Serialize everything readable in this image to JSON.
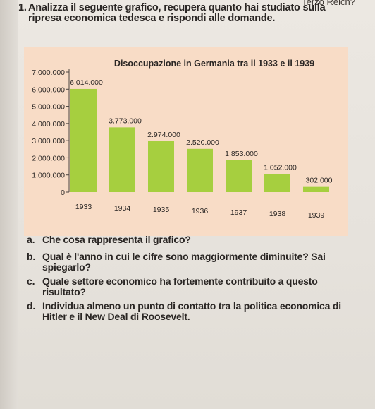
{
  "header_fragment": "Terzo Reich?",
  "exercise": {
    "number": "1.",
    "instruction": "Analizza il seguente grafico, recupera quanto hai studiato sulla ripresa economica tedesca e rispondi alle domande."
  },
  "chart_data": {
    "type": "bar",
    "title": "Disoccupazione in Germania tra il 1933 e il 1939",
    "categories": [
      "1933",
      "1934",
      "1935",
      "1936",
      "1937",
      "1938",
      "1939"
    ],
    "values": [
      6014000,
      3773000,
      2974000,
      2520000,
      1853000,
      1052000,
      302000
    ],
    "data_labels": [
      "6.014.000",
      "3.773.000",
      "2.974.000",
      "2.520.000",
      "1.853.000",
      "1.052.000",
      "302.000"
    ],
    "y_ticks": [
      0,
      1000000,
      2000000,
      3000000,
      4000000,
      5000000,
      6000000,
      7000000
    ],
    "y_tick_labels": [
      "0",
      "1.000.000",
      "2.000.000",
      "3.000.000",
      "4.000.000",
      "5.000.000",
      "6.000.000",
      "7.000.000"
    ],
    "ylim": [
      0,
      7000000
    ],
    "grid": false,
    "colors": {
      "bar": "#a6cf3f",
      "background": "#f8dcc6",
      "axis": "#4a4440"
    }
  },
  "questions": [
    {
      "label": "a.",
      "text": "Che cosa rappresenta il grafico?"
    },
    {
      "label": "b.",
      "text": "Qual è l'anno in cui le cifre sono maggiormente diminuite? Sai spiegarlo?"
    },
    {
      "label": "c.",
      "text": "Quale settore economico ha fortemente contribuito a questo risultato?"
    },
    {
      "label": "d.",
      "text": "Individua almeno un punto di contatto tra la politica economica di Hitler e il New Deal di Roosevelt."
    }
  ]
}
